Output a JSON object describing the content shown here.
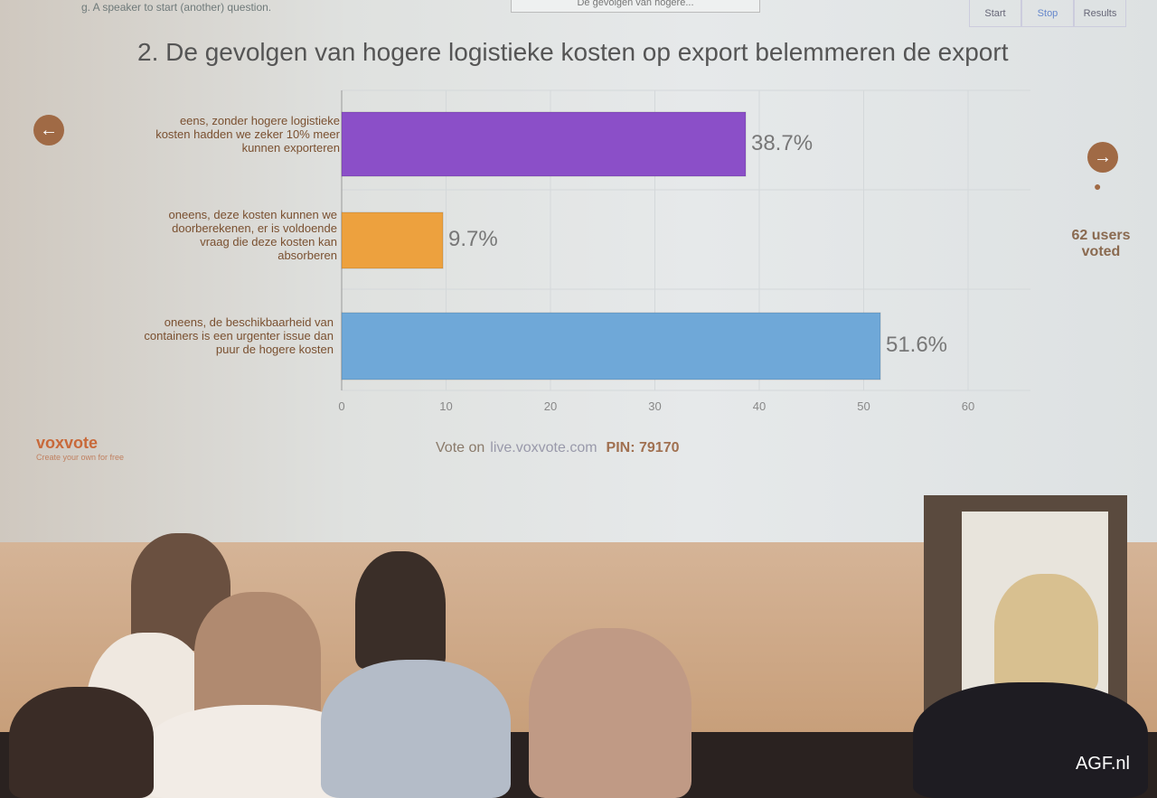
{
  "header": {
    "hint": "g. A speaker to start (another) question.",
    "selected_question": "De gevolgen van hogere...",
    "controls": [
      "Start",
      "Stop",
      "Results"
    ]
  },
  "title": "2. De gevolgen van hogere logistieke kosten op export belemmeren de export",
  "users_voted": "62 users voted",
  "footer": {
    "brand": "voxvote",
    "tagline": "Create your own for free",
    "vote_on": "Vote on",
    "url": "live.voxvote.com",
    "pin": "PIN: 79170"
  },
  "watermark": "AGF.nl",
  "chart_data": {
    "type": "bar",
    "orientation": "horizontal",
    "categories": [
      "eens, zonder hogere logistieke kosten hadden we zeker 10% meer kunnen exporteren",
      "oneens, deze kosten kunnen we doorberekenen, er is voldoende vraag die deze kosten kan absorberen",
      "oneens, de beschikbaarheid van containers is een urgenter issue dan puur de hogere kosten"
    ],
    "values": [
      38.7,
      9.7,
      51.6
    ],
    "data_labels": [
      "38.7%",
      "9.7%",
      "51.6%"
    ],
    "colors": [
      "#8b4fc8",
      "#eda13e",
      "#6fa8d8"
    ],
    "xlim": [
      0,
      66
    ],
    "xticks": [
      "0",
      "10",
      "20",
      "30",
      "40",
      "50",
      "60"
    ],
    "grid": true
  }
}
